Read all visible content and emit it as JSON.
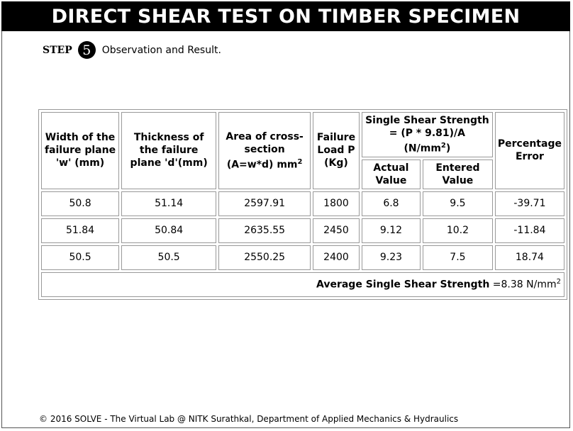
{
  "header": {
    "title": "DIRECT SHEAR TEST ON TIMBER SPECIMEN"
  },
  "step": {
    "word": "STEP",
    "number": "5",
    "text": "Observation and Result."
  },
  "table": {
    "col_width": "Width of the failure plane 'w' (mm)",
    "col_thickness": "Thickness of the failure plane 'd'(mm)",
    "col_area": "Area of cross-section (A=w*d) mm",
    "col_area_sup": "2",
    "col_load": "Failure Load P (Kg)",
    "col_strength": "Single Shear Strength = (P * 9.81)/A (N/mm",
    "col_strength_sup": "2",
    "col_strength_close": ")",
    "col_error": "Percentage Error",
    "sub_actual": "Actual Value",
    "sub_entered": "Entered Value",
    "rows": [
      {
        "w": "50.8",
        "d": "51.14",
        "area": "2597.91",
        "load": "1800",
        "actual": "6.8",
        "entered": "9.5",
        "error": "-39.71"
      },
      {
        "w": "51.84",
        "d": "50.84",
        "area": "2635.55",
        "load": "2450",
        "actual": "9.12",
        "entered": "10.2",
        "error": "-11.84"
      },
      {
        "w": "50.5",
        "d": "50.5",
        "area": "2550.25",
        "load": "2400",
        "actual": "9.23",
        "entered": "7.5",
        "error": "18.74"
      }
    ],
    "avg_label": "Average Single Shear Strength",
    "avg_value": "=8.38 N/mm",
    "avg_sup": "2"
  },
  "footer": {
    "text": "© 2016 SOLVE - The Virtual Lab @ NITK Surathkal, Department of Applied Mechanics & Hydraulics"
  }
}
